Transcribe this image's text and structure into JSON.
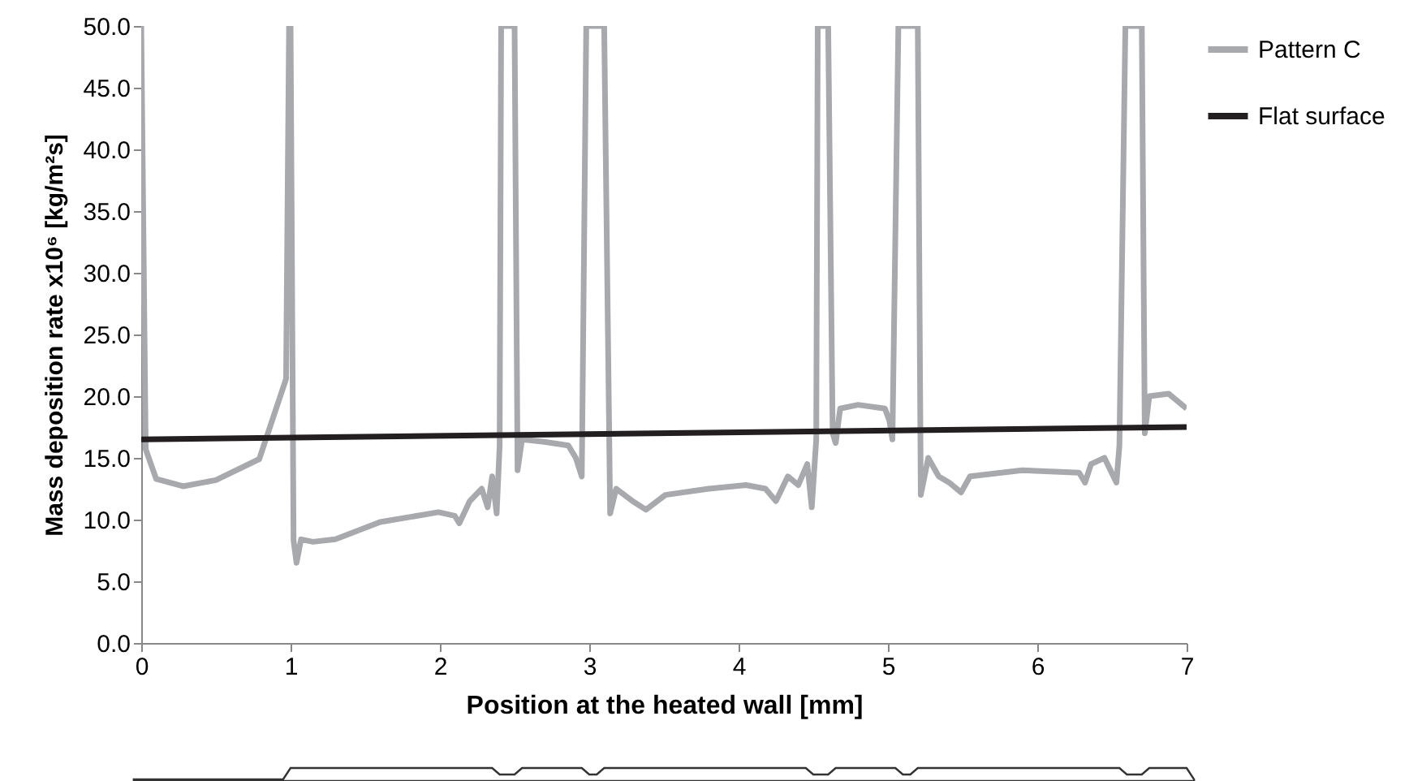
{
  "chart_data": {
    "type": "line",
    "xlabel": "Position at the heated wall [mm]",
    "ylabel": "Mass deposition rate x10⁶ [kg/m²s]",
    "xlim": [
      0,
      7
    ],
    "ylim": [
      0,
      50
    ],
    "xticks": [
      0,
      1,
      2,
      3,
      4,
      5,
      6,
      7
    ],
    "yticks": [
      {
        "value": 0,
        "label": "0.0"
      },
      {
        "value": 5,
        "label": "5.0"
      },
      {
        "value": 10,
        "label": "10.0"
      },
      {
        "value": 15,
        "label": "15.0"
      },
      {
        "value": 20,
        "label": "20.0"
      },
      {
        "value": 25,
        "label": "25.0"
      },
      {
        "value": 30,
        "label": "30.0"
      },
      {
        "value": 35,
        "label": "35.0"
      },
      {
        "value": 40,
        "label": "40.0"
      },
      {
        "value": 45,
        "label": "45.0"
      },
      {
        "value": 50,
        "label": "50.0"
      }
    ],
    "grid": false,
    "legend": "top right",
    "marker": "none",
    "line_style": "solid",
    "series": [
      {
        "name": "Pattern C",
        "color": "#a7a9ac",
        "x": [
          0,
          0.03,
          0.1,
          0.28,
          0.5,
          0.79,
          0.97,
          0.99,
          1.0,
          1.02,
          1.04,
          1.07,
          1.15,
          1.3,
          1.6,
          1.99,
          2.1,
          2.13,
          2.2,
          2.28,
          2.32,
          2.35,
          2.38,
          2.4,
          2.41,
          2.5,
          2.52,
          2.55,
          2.7,
          2.86,
          2.91,
          2.95,
          2.98,
          3.1,
          3.14,
          3.18,
          3.29,
          3.38,
          3.51,
          3.8,
          4.05,
          4.18,
          4.25,
          4.33,
          4.4,
          4.46,
          4.49,
          4.52,
          4.53,
          4.6,
          4.63,
          4.65,
          4.68,
          4.8,
          4.98,
          5.01,
          5.03,
          5.07,
          5.2,
          5.22,
          5.27,
          5.34,
          5.41,
          5.49,
          5.55,
          5.9,
          6.28,
          6.32,
          6.36,
          6.45,
          6.53,
          6.55,
          6.59,
          6.7,
          6.72,
          6.75,
          6.88,
          7.0
        ],
        "values": [
          50,
          15.7,
          13.3,
          12.7,
          13.2,
          14.9,
          21.4,
          50,
          50,
          8.3,
          6.5,
          8.4,
          8.2,
          8.4,
          9.8,
          10.6,
          10.3,
          9.7,
          11.5,
          12.5,
          11,
          13.5,
          10.5,
          16,
          50,
          50,
          14,
          16.5,
          16.3,
          16.0,
          15.0,
          13.5,
          50,
          50,
          10.5,
          12.5,
          11.5,
          10.8,
          12.0,
          12.5,
          12.8,
          12.5,
          11.5,
          13.5,
          12.8,
          14.5,
          11,
          16.5,
          50,
          50,
          17,
          16.2,
          19.0,
          19.3,
          19,
          18.0,
          16.5,
          50,
          50,
          12.0,
          15,
          13.5,
          13.0,
          12.2,
          13.5,
          14.0,
          13.8,
          13.0,
          14.5,
          15,
          13.0,
          16.0,
          50,
          50,
          17.0,
          20,
          20.2,
          19.0
        ]
      },
      {
        "name": "Flat surface",
        "color": "#231f20",
        "x": [
          0,
          7
        ],
        "values": [
          16.5,
          17.5
        ]
      }
    ]
  }
}
